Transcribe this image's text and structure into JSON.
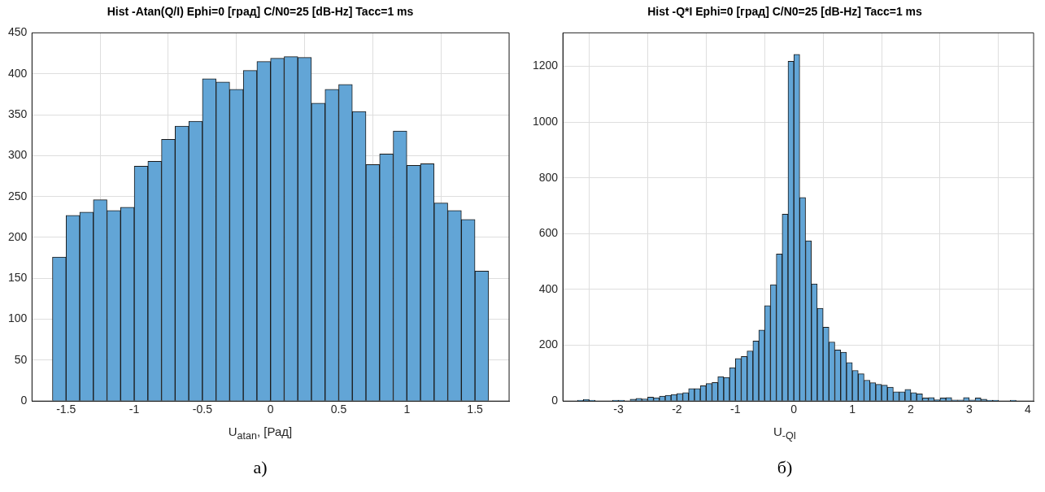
{
  "chart_data": [
    {
      "type": "histogram",
      "title": "Hist -Atan(Q/I) Ephi=0 [град] C/N0=25 [dB-Hz] Tacc=1 ms",
      "xlabel": "U$_{atan}$, [Рад]",
      "color": "#62a5d6",
      "bins": [
        -1.6,
        -1.5,
        -1.4,
        -1.3,
        -1.2,
        -1.1,
        -1.0,
        -0.9,
        -0.8,
        -0.7,
        -0.6,
        -0.5,
        -0.4,
        -0.3,
        -0.2,
        -0.1,
        0,
        0.1,
        0.2,
        0.3,
        0.4,
        0.5,
        0.6,
        0.7,
        0.8,
        0.9,
        1.0,
        1.1,
        1.2,
        1.3,
        1.4,
        1.5,
        1.6
      ],
      "values": [
        176,
        227,
        231,
        246,
        233,
        237,
        287,
        293,
        320,
        336,
        342,
        394,
        390,
        381,
        404,
        415,
        419,
        421,
        420,
        364,
        381,
        387,
        354,
        289,
        302,
        330,
        288,
        290,
        242,
        233,
        222,
        159
      ],
      "xlim": [
        -1.75,
        1.75
      ],
      "ylim": [
        0,
        450
      ],
      "xticks": [
        -1.5,
        -1,
        -0.5,
        0,
        0.5,
        1,
        1.5
      ],
      "yticks": [
        0,
        50,
        100,
        150,
        200,
        250,
        300,
        350,
        400,
        450
      ],
      "grid": true,
      "annotations": [
        "а)"
      ]
    },
    {
      "type": "histogram",
      "title": "Hist -Q*I Ephi=0 [град] C/N0=25 [dB-Hz] Tacc=1 ms",
      "xlabel": "U$_{-QI}$",
      "color": "#62a5d6",
      "bins": [
        -3.7,
        -3.6,
        -3.5,
        -3.4,
        -3.3,
        -3.2,
        -3.1,
        -3.0,
        -2.9,
        -2.8,
        -2.7,
        -2.6,
        -2.5,
        -2.4,
        -2.3,
        -2.2,
        -2.1,
        -2.0,
        -1.9,
        -1.8,
        -1.7,
        -1.6,
        -1.5,
        -1.4,
        -1.3,
        -1.2,
        -1.1,
        -1.0,
        -0.9,
        -0.8,
        -0.7,
        -0.6,
        -0.5,
        -0.4,
        -0.3,
        -0.2,
        -0.1,
        0,
        0.1,
        0.2,
        0.3,
        0.4,
        0.5,
        0.6,
        0.7,
        0.8,
        0.9,
        1.0,
        1.1,
        1.2,
        1.3,
        1.4,
        1.5,
        1.6,
        1.7,
        1.8,
        1.9,
        2.0,
        2.1,
        2.2,
        2.3,
        2.4,
        2.5,
        2.6,
        2.7,
        2.8,
        2.9,
        3.0,
        3.1,
        3.2,
        3.3,
        3.4,
        3.5,
        3.6,
        3.7,
        3.8
      ],
      "values": [
        3,
        6,
        3,
        0,
        0,
        0,
        3,
        3,
        0,
        7,
        10,
        8,
        14,
        12,
        18,
        21,
        24,
        27,
        30,
        45,
        45,
        55,
        63,
        67,
        88,
        85,
        120,
        153,
        160,
        180,
        215,
        255,
        342,
        417,
        527,
        670,
        1218,
        1243,
        730,
        575,
        420,
        333,
        265,
        212,
        183,
        175,
        138,
        110,
        98,
        75,
        66,
        60,
        57,
        50,
        33,
        33,
        42,
        30,
        26,
        11,
        13,
        5,
        11,
        13,
        4,
        4,
        13,
        4,
        11,
        7,
        3,
        3,
        0,
        0,
        3
      ],
      "xlim": [
        -3.95,
        4.1
      ],
      "ylim": [
        0,
        1320
      ],
      "xticks": [
        -3,
        -2,
        -1,
        0,
        1,
        2,
        3,
        4
      ],
      "yticks": [
        0,
        200,
        400,
        600,
        800,
        1000,
        1200
      ],
      "grid": true,
      "annotations": [
        "б)"
      ]
    }
  ]
}
